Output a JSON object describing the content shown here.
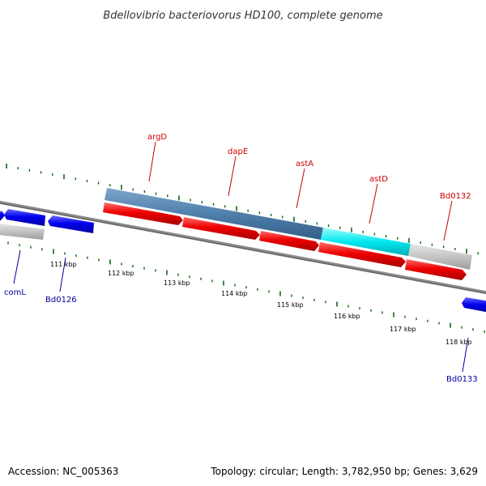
{
  "title": "Bdellovibrio bacteriovorus HD100, complete genome",
  "accession_text": "Accession: NC_005363",
  "summary_text": "Topology: circular; Length: 3,782,950 bp; Genes: 3,629",
  "colors": {
    "forward_label": "#cc0000",
    "reverse_label": "#000099",
    "tick": "#116611",
    "backbone": "#777777",
    "forward_gene": "#ee0000",
    "reverse_gene": "#0000ee",
    "unannotated_gene": "#c0c0c0",
    "operon_steelblue": "#4f7fac",
    "operon_cyan": "#00e8ee"
  },
  "scale_labels": [
    "111 kbp",
    "112 kbp",
    "113 kbp",
    "114 kbp",
    "115 kbp",
    "116 kbp",
    "117 kbp",
    "118 kbp"
  ],
  "gene_labels": [
    {
      "name": "argD",
      "strand": "forward"
    },
    {
      "name": "dapE",
      "strand": "forward"
    },
    {
      "name": "astA",
      "strand": "forward"
    },
    {
      "name": "astD",
      "strand": "forward"
    },
    {
      "name": "Bd0132",
      "strand": "forward"
    },
    {
      "name": "comL",
      "strand": "reverse"
    },
    {
      "name": "Bd0126",
      "strand": "reverse"
    },
    {
      "name": "Bd0133",
      "strand": "reverse"
    }
  ]
}
